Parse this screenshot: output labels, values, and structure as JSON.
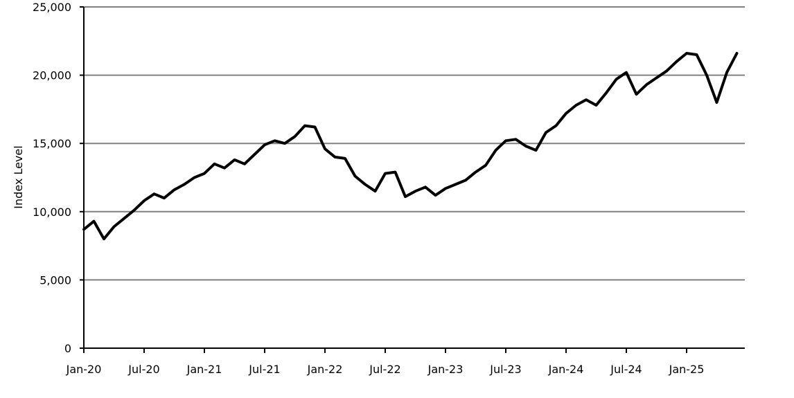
{
  "chart_data": {
    "type": "line",
    "title": "",
    "xlabel": "",
    "ylabel": "Index Level",
    "ylim": [
      0,
      25000
    ],
    "y_ticks": [
      {
        "value": 0,
        "label": "0"
      },
      {
        "value": 5000,
        "label": "5,000"
      },
      {
        "value": 10000,
        "label": "10,000"
      },
      {
        "value": 15000,
        "label": "15,000"
      },
      {
        "value": 20000,
        "label": "20,000"
      },
      {
        "value": 25000,
        "label": "25,000"
      }
    ],
    "x_ticks": [
      "Jan-20",
      "Jul-20",
      "Jan-21",
      "Jul-21",
      "Jan-22",
      "Jul-22",
      "Jan-23",
      "Jul-23",
      "Jan-24",
      "Jul-24",
      "Jan-25"
    ],
    "grid": "horizontal",
    "legend": "none",
    "line_color": "#000000",
    "grid_color": "#808080",
    "series": [
      {
        "x": [
          "2020-01",
          "2020-02",
          "2020-03",
          "2020-04",
          "2020-05",
          "2020-06",
          "2020-07",
          "2020-08",
          "2020-09",
          "2020-10",
          "2020-11",
          "2020-12",
          "2021-01",
          "2021-02",
          "2021-03",
          "2021-04",
          "2021-05",
          "2021-06",
          "2021-07",
          "2021-08",
          "2021-09",
          "2021-10",
          "2021-11",
          "2021-12",
          "2022-01",
          "2022-02",
          "2022-03",
          "2022-04",
          "2022-05",
          "2022-06",
          "2022-07",
          "2022-08",
          "2022-09",
          "2022-10",
          "2022-11",
          "2022-12",
          "2023-01",
          "2023-02",
          "2023-03",
          "2023-04",
          "2023-05",
          "2023-06",
          "2023-07",
          "2023-08",
          "2023-09",
          "2023-10",
          "2023-11",
          "2023-12",
          "2024-01",
          "2024-02",
          "2024-03",
          "2024-04",
          "2024-05",
          "2024-06",
          "2024-07",
          "2024-08",
          "2024-09",
          "2024-10",
          "2024-11",
          "2024-12",
          "2025-01",
          "2025-02",
          "2025-03",
          "2025-04",
          "2025-05",
          "2025-06"
        ],
        "y": [
          8700,
          9300,
          8000,
          8900,
          9500,
          10100,
          10800,
          11300,
          11000,
          11600,
          12000,
          12500,
          12800,
          13500,
          13200,
          13800,
          13500,
          14200,
          14900,
          15200,
          15000,
          15500,
          16300,
          16200,
          14600,
          14000,
          13900,
          12600,
          12000,
          11500,
          12800,
          12900,
          11100,
          11500,
          11800,
          11200,
          11700,
          12000,
          12300,
          12900,
          13400,
          14500,
          15200,
          15300,
          14800,
          14500,
          15800,
          16300,
          17200,
          17800,
          18200,
          17800,
          18700,
          19700,
          20200,
          18600,
          19300,
          19800,
          20300,
          21000,
          21600,
          21500,
          20000,
          18000,
          20200,
          21600
        ]
      }
    ]
  }
}
